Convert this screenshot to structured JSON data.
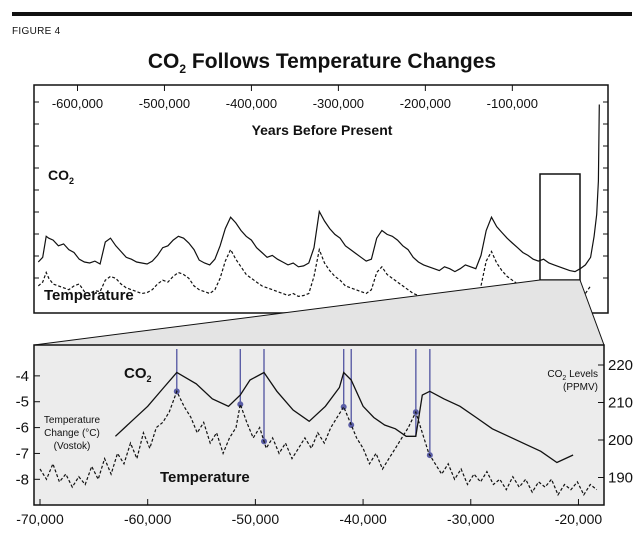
{
  "figure_label": "FIGURE 4",
  "title_main": "CO",
  "title_sub": "2",
  "title_rest": " Follows Temperature Changes",
  "colors": {
    "ink": "#111111",
    "marker": "#5b5ea6",
    "inset_bg": "#e9e9e9",
    "rule": "#111111"
  },
  "chart_data": [
    {
      "type": "line",
      "panel": "overview",
      "xlabel": "Years Before Present",
      "x_ticks": [
        -600000,
        -500000,
        -400000,
        -300000,
        -200000,
        -100000
      ],
      "x_tick_labels": [
        "-600,000",
        "-500,000",
        "-400,000",
        "-300,000",
        "-200,000",
        "-100,000"
      ],
      "xlim": [
        -650000,
        10000
      ],
      "grid": false,
      "series": [
        {
          "name": "CO2",
          "label_main": "CO",
          "label_sub": "2",
          "style": "solid",
          "x": [
            -645000,
            -640000,
            -636000,
            -633000,
            -628000,
            -622000,
            -616000,
            -610000,
            -604000,
            -598000,
            -592000,
            -586000,
            -580000,
            -574000,
            -568000,
            -562000,
            -556000,
            -550000,
            -544000,
            -538000,
            -532000,
            -526000,
            -520000,
            -514000,
            -508000,
            -502000,
            -496000,
            -490000,
            -484000,
            -478000,
            -472000,
            -466000,
            -460000,
            -454000,
            -448000,
            -442000,
            -436000,
            -430000,
            -424000,
            -418000,
            -412000,
            -406000,
            -400000,
            -394000,
            -388000,
            -382000,
            -376000,
            -370000,
            -364000,
            -358000,
            -352000,
            -346000,
            -340000,
            -334000,
            -328000,
            -322000,
            -316000,
            -310000,
            -304000,
            -298000,
            -292000,
            -286000,
            -280000,
            -274000,
            -268000,
            -262000,
            -256000,
            -250000,
            -244000,
            -238000,
            -232000,
            -226000,
            -220000,
            -214000,
            -208000,
            -202000,
            -196000,
            -190000,
            -184000,
            -178000,
            -172000,
            -166000,
            -160000,
            -154000,
            -148000,
            -142000,
            -136000,
            -130000,
            -124000,
            -118000,
            -112000,
            -106000,
            -100000,
            -94000,
            -88000,
            -82000,
            -76000,
            -70000,
            -64000,
            -58000,
            -52000,
            -46000,
            -40000,
            -34000,
            -28000,
            -22000,
            -16000,
            -10000,
            -6000,
            -3000,
            -1000,
            0
          ],
          "y": [
            0.45,
            0.5,
            0.72,
            0.7,
            0.68,
            0.62,
            0.64,
            0.58,
            0.55,
            0.48,
            0.45,
            0.44,
            0.46,
            0.43,
            0.66,
            0.7,
            0.62,
            0.56,
            0.5,
            0.48,
            0.45,
            0.44,
            0.43,
            0.46,
            0.52,
            0.6,
            0.62,
            0.68,
            0.72,
            0.7,
            0.65,
            0.58,
            0.47,
            0.44,
            0.42,
            0.48,
            0.62,
            0.8,
            0.92,
            0.86,
            0.78,
            0.72,
            0.68,
            0.6,
            0.55,
            0.5,
            0.52,
            0.48,
            0.45,
            0.42,
            0.44,
            0.4,
            0.41,
            0.44,
            0.6,
            0.98,
            0.88,
            0.8,
            0.74,
            0.7,
            0.62,
            0.58,
            0.54,
            0.5,
            0.46,
            0.48,
            0.7,
            0.78,
            0.74,
            0.72,
            0.68,
            0.62,
            0.58,
            0.5,
            0.45,
            0.42,
            0.4,
            0.38,
            0.36,
            0.4,
            0.38,
            0.35,
            0.38,
            0.42,
            0.4,
            0.38,
            0.52,
            0.78,
            0.92,
            0.82,
            0.76,
            0.7,
            0.65,
            0.6,
            0.55,
            0.52,
            0.48,
            0.46,
            0.48,
            0.44,
            0.42,
            0.4,
            0.38,
            0.36,
            0.35,
            0.38,
            0.42,
            0.5,
            0.72,
            0.95,
            1.3,
            2.1
          ]
        },
        {
          "name": "Temperature",
          "style": "dashed",
          "x": [
            -645000,
            -640000,
            -636000,
            -633000,
            -628000,
            -622000,
            -616000,
            -610000,
            -604000,
            -598000,
            -592000,
            -586000,
            -580000,
            -574000,
            -568000,
            -562000,
            -556000,
            -550000,
            -544000,
            -538000,
            -532000,
            -526000,
            -520000,
            -514000,
            -508000,
            -502000,
            -496000,
            -490000,
            -484000,
            -478000,
            -472000,
            -466000,
            -460000,
            -454000,
            -448000,
            -442000,
            -436000,
            -430000,
            -424000,
            -418000,
            -412000,
            -406000,
            -400000,
            -394000,
            -388000,
            -382000,
            -376000,
            -370000,
            -364000,
            -358000,
            -352000,
            -346000,
            -340000,
            -334000,
            -328000,
            -322000,
            -316000,
            -310000,
            -304000,
            -298000,
            -292000,
            -286000,
            -280000,
            -274000,
            -268000,
            -262000,
            -256000,
            -250000,
            -244000,
            -238000,
            -232000,
            -226000,
            -220000,
            -214000,
            -208000,
            -202000,
            -196000,
            -190000,
            -184000,
            -178000,
            -172000,
            -166000,
            -160000,
            -154000,
            -148000,
            -142000,
            -136000,
            -130000,
            -124000,
            -118000,
            -112000,
            -106000,
            -100000,
            -94000,
            -88000,
            -82000,
            -76000,
            -70000,
            -64000,
            -58000,
            -52000,
            -46000,
            -40000,
            -34000,
            -28000,
            -22000,
            -16000,
            -10000
          ],
          "y": [
            0.2,
            0.24,
            0.34,
            0.28,
            0.22,
            0.2,
            0.18,
            0.16,
            0.2,
            0.22,
            0.14,
            0.12,
            0.15,
            0.14,
            0.26,
            0.3,
            0.28,
            0.22,
            0.18,
            0.16,
            0.14,
            0.12,
            0.13,
            0.16,
            0.22,
            0.26,
            0.24,
            0.3,
            0.34,
            0.32,
            0.28,
            0.2,
            0.16,
            0.14,
            0.12,
            0.16,
            0.28,
            0.46,
            0.58,
            0.48,
            0.4,
            0.32,
            0.28,
            0.24,
            0.2,
            0.18,
            0.16,
            0.14,
            0.12,
            0.1,
            0.12,
            0.09,
            0.1,
            0.12,
            0.3,
            0.58,
            0.44,
            0.36,
            0.3,
            0.26,
            0.2,
            0.18,
            0.16,
            0.14,
            0.12,
            0.16,
            0.34,
            0.4,
            0.32,
            0.28,
            0.24,
            0.2,
            0.16,
            0.12,
            0.1,
            0.08,
            0.07,
            0.06,
            0.05,
            0.08,
            0.06,
            0.05,
            0.07,
            0.1,
            0.08,
            0.06,
            0.2,
            0.46,
            0.56,
            0.44,
            0.36,
            0.3,
            0.26,
            0.22,
            0.18,
            0.16,
            0.12,
            0.1,
            0.12,
            0.08,
            0.06,
            0.05,
            0.04,
            0.03,
            0.04,
            0.06,
            0.12,
            0.2
          ]
        }
      ]
    },
    {
      "type": "line",
      "panel": "inset",
      "x_ticks": [
        -70000,
        -60000,
        -50000,
        -40000,
        -30000,
        -20000
      ],
      "x_tick_labels": [
        "-70,000",
        "-60,000",
        "-50,000",
        "-40,000",
        "-30,000",
        "-20,000"
      ],
      "xlim": [
        -70000,
        -18000
      ],
      "y_left_label": "Temperature Change (°C) (Vostok)",
      "y_left_label_lines": [
        "Temperature",
        "Change (°C)",
        "(Vostok)"
      ],
      "y_left_ticks": [
        -4,
        -5,
        -6,
        -7,
        -8
      ],
      "y_left_tick_labels": [
        "-4",
        "-5",
        "-6",
        "-7",
        "-8"
      ],
      "y_left_lim": [
        -8.8,
        -3.0
      ],
      "y_right_label": "CO2 Levels (PPMV)",
      "y_right_label_main": "CO",
      "y_right_label_sub": "2",
      "y_right_label_rest": " Levels",
      "y_right_label_line2": "(PPMV)",
      "y_right_ticks": [
        220,
        210,
        200,
        190
      ],
      "y_right_tick_labels": [
        "220",
        "210",
        "200",
        "190"
      ],
      "y_right_lim": [
        184,
        224
      ],
      "grid": false,
      "markers_x": [
        -57300,
        -51400,
        -49200,
        -41800,
        -41100,
        -35100,
        -33800
      ],
      "series": [
        {
          "name": "CO2",
          "label_main": "CO",
          "label_sub": "2",
          "axis": "right",
          "style": "solid",
          "x": [
            -63000,
            -61500,
            -60000,
            -58500,
            -57300,
            -55500,
            -54000,
            -52500,
            -51400,
            -50500,
            -49200,
            -48000,
            -46500,
            -45000,
            -43500,
            -42200,
            -41800,
            -41100,
            -40000,
            -39000,
            -38000,
            -37000,
            -36000,
            -35100,
            -34500,
            -33800,
            -32500,
            -31000,
            -29500,
            -28000,
            -26500,
            -25000,
            -23500,
            -22000,
            -20500
          ],
          "y": [
            201,
            205,
            209,
            214,
            218,
            215,
            211,
            209,
            212,
            216,
            218,
            213,
            208,
            205,
            209,
            214,
            218,
            216,
            209,
            206,
            204,
            203,
            201,
            201,
            212,
            213,
            211,
            209,
            206,
            203,
            201,
            199,
            197,
            194,
            196
          ]
        },
        {
          "name": "Temperature",
          "axis": "left",
          "style": "dashed",
          "x": [
            -70000,
            -69400,
            -68800,
            -68200,
            -67600,
            -67000,
            -66400,
            -65800,
            -65200,
            -64600,
            -64000,
            -63400,
            -62800,
            -62200,
            -61600,
            -61000,
            -60400,
            -59800,
            -59200,
            -58600,
            -58000,
            -57300,
            -56600,
            -56000,
            -55400,
            -54800,
            -54200,
            -53600,
            -53000,
            -52400,
            -51800,
            -51400,
            -50800,
            -50200,
            -49600,
            -49000,
            -48400,
            -47800,
            -47200,
            -46600,
            -46000,
            -45400,
            -44800,
            -44200,
            -43600,
            -43000,
            -42400,
            -41800,
            -41200,
            -40600,
            -40000,
            -39400,
            -38800,
            -38200,
            -37600,
            -37000,
            -36400,
            -35800,
            -35100,
            -34500,
            -33900,
            -33300,
            -32700,
            -32100,
            -31500,
            -30900,
            -30300,
            -29700,
            -29100,
            -28500,
            -27900,
            -27300,
            -26700,
            -26100,
            -25500,
            -24900,
            -24300,
            -23700,
            -23100,
            -22500,
            -21900,
            -21300,
            -20700,
            -20100,
            -19500,
            -18900,
            -18300
          ],
          "y": [
            -7.6,
            -8.0,
            -7.4,
            -8.1,
            -7.8,
            -8.3,
            -7.9,
            -8.2,
            -7.5,
            -8.0,
            -7.2,
            -7.8,
            -7.0,
            -7.4,
            -6.6,
            -7.2,
            -6.2,
            -6.8,
            -6.0,
            -5.8,
            -5.4,
            -4.6,
            -5.2,
            -5.6,
            -6.2,
            -5.8,
            -6.6,
            -6.2,
            -7.0,
            -6.4,
            -6.0,
            -5.1,
            -5.8,
            -6.4,
            -6.0,
            -6.8,
            -6.4,
            -7.0,
            -6.6,
            -7.2,
            -6.8,
            -6.4,
            -6.8,
            -6.2,
            -6.6,
            -6.0,
            -5.6,
            -5.2,
            -5.8,
            -6.4,
            -6.8,
            -7.4,
            -7.0,
            -7.6,
            -7.2,
            -6.8,
            -6.4,
            -6.0,
            -5.4,
            -6.2,
            -7.0,
            -7.4,
            -7.8,
            -7.4,
            -8.0,
            -7.6,
            -8.2,
            -7.8,
            -8.1,
            -7.7,
            -8.2,
            -8.0,
            -8.4,
            -7.9,
            -8.3,
            -8.0,
            -8.5,
            -8.1,
            -8.3,
            -8.0,
            -8.6,
            -8.2,
            -8.4,
            -8.1,
            -8.6,
            -8.2,
            -8.4
          ]
        }
      ]
    }
  ]
}
